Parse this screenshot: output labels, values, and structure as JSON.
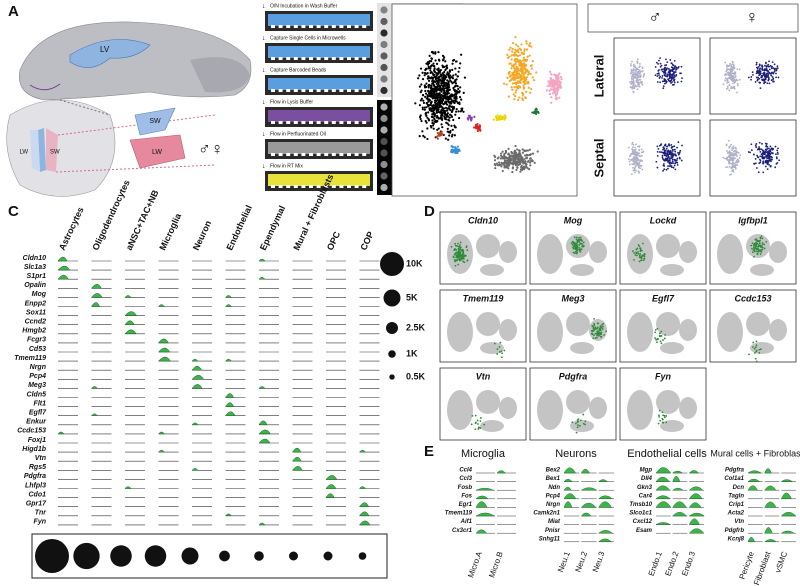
{
  "panels": {
    "a": {
      "label": "A",
      "brain_labels": [
        "LV",
        "SW",
        "LW",
        "SW",
        "LW"
      ],
      "sex": "♂♀",
      "steps": [
        "O/N Incubation in Wash Buffer",
        "Capture Single Cells in Microwells",
        "Capture Barcoded Beads",
        "Flow in Lysis Buffer",
        "Flow in Perfluorinated Oil",
        "Flow in RT Mix"
      ]
    },
    "b": {
      "label": "B",
      "columns": [
        "♂",
        "♀"
      ],
      "rows": [
        "Lateral",
        "Septal"
      ]
    },
    "c": {
      "label": "C",
      "cell_types": [
        {
          "name": "Astrocytes",
          "color": "#000000"
        },
        {
          "name": "Oligodendrocytes",
          "color": "#8c8c8c"
        },
        {
          "name": "aNSC+TAC+NB",
          "color": "#f5a623"
        },
        {
          "name": "Microglia",
          "color": "#f4a3c0"
        },
        {
          "name": "Neuron",
          "color": "#e8d400"
        },
        {
          "name": "Endothelial",
          "color": "#3a8fd0"
        },
        {
          "name": "Ependymal",
          "color": "#b5471b"
        },
        {
          "name": "Mural + Fibroblasts",
          "color": "#1f7a2e"
        },
        {
          "name": "OPC",
          "color": "#e0201b"
        },
        {
          "name": "COP",
          "color": "#8a3fb0"
        }
      ],
      "genes": [
        "Cldn10",
        "Slc1a3",
        "S1pr1",
        "Opalin",
        "Mog",
        "Enpp2",
        "Sox11",
        "Ccnd2",
        "Hmgb2",
        "Fcgr3",
        "Cd53",
        "Tmem119",
        "Nrgn",
        "Pcp4",
        "Meg3",
        "Cldn5",
        "Flt1",
        "Egfl7",
        "Enkur",
        "Ccdc153",
        "Foxj1",
        "Higd1b",
        "Vtn",
        "Rgs5",
        "Pdgfra",
        "Lhfpl3",
        "Cdo1",
        "Gpr17",
        "Tnr",
        "Fyn"
      ],
      "size_legend": [
        {
          "value": 10000,
          "label": "10K"
        },
        {
          "value": 5000,
          "label": "5K"
        },
        {
          "value": 2500,
          "label": "2.5K"
        },
        {
          "value": 1000,
          "label": "1K"
        },
        {
          "value": 500,
          "label": "0.5K"
        }
      ],
      "cell_counts": [
        10000,
        6000,
        4000,
        4000,
        2500,
        1000,
        800,
        700,
        700,
        500
      ]
    },
    "d": {
      "label": "D",
      "genes": [
        "Cldn10",
        "Mog",
        "Lockd",
        "Igfbpl1",
        "Tmem119",
        "Meg3",
        "Egfl7",
        "Ccdc153",
        "Vtn",
        "Pdgfra",
        "Fyn"
      ]
    },
    "e": {
      "label": "E",
      "groups": [
        {
          "title": "Microglia",
          "genes": [
            "Ccl4",
            "Ccl3",
            "Fosb",
            "Fos",
            "Egr1",
            "Tmem119",
            "Aif1",
            "Cx3cr1"
          ],
          "clusters": [
            "Micro.A",
            "Micro.B"
          ]
        },
        {
          "title": "Neurons",
          "genes": [
            "Bex2",
            "Bex1",
            "Ndn",
            "Pcp4",
            "Nrgn",
            "Camk2n1",
            "Miat",
            "Pnisr",
            "Snhg11"
          ],
          "clusters": [
            "Neu.1",
            "Neu.2",
            "Neu.3"
          ]
        },
        {
          "title": "Endothelial cells",
          "genes": [
            "Mgp",
            "Dll4",
            "Gkn3",
            "Car4",
            "Tmsb10",
            "Slco1c1",
            "Cxcl12",
            "Esam"
          ],
          "clusters": [
            "Endo.1",
            "Endo.2",
            "Endo.3"
          ]
        },
        {
          "title": "Mural cells + Fibroblasts",
          "genes": [
            "Pdgfra",
            "Col1a1",
            "Dcn",
            "Tagln",
            "Crip1",
            "Acta2",
            "Vtn",
            "Pdgfrb",
            "Kcnj8"
          ],
          "clusters": [
            "Pericyte",
            "Fibroblast",
            "vSMC"
          ]
        }
      ]
    }
  }
}
